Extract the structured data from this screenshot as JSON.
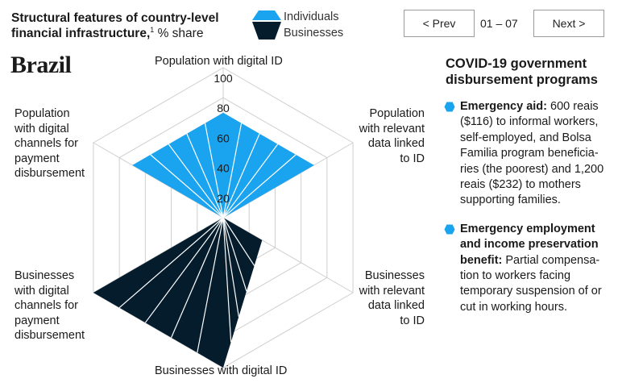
{
  "header": {
    "title_bold": "Structural features of country-level financial infrastructure,",
    "footnote": "1",
    "title_unit": "% share"
  },
  "legend": {
    "items": [
      {
        "label": "Individuals",
        "color": "#1aa3ef"
      },
      {
        "label": "Businesses",
        "color": "#051c2c"
      }
    ]
  },
  "nav": {
    "prev_label": "< Prev",
    "page_indicator": "01 – 07",
    "next_label": "Next >"
  },
  "country": "Brazil",
  "chart_data": {
    "type": "radar",
    "axes": [
      "Population with digital ID",
      "Population with relevant data linked to ID",
      "Businesses with relevant data linked to ID",
      "Businesses with digital ID",
      "Businesses with digital channels for payment disbursement",
      "Population with digital channels for payment disbursement"
    ],
    "tick_labels": [
      "20",
      "40",
      "60",
      "80",
      "100"
    ],
    "range": [
      0,
      100
    ],
    "series": [
      {
        "name": "Individuals",
        "color": "#1aa3ef",
        "values": [
          70,
          70,
          0,
          0,
          0,
          70
        ]
      },
      {
        "name": "Businesses",
        "color": "#051c2c",
        "values": [
          0,
          0,
          30,
          100,
          100,
          0
        ]
      }
    ],
    "axis_labels": {
      "top": "Population with digital ID",
      "top_right": [
        "Population",
        "with relevant",
        "data linked",
        "to ID"
      ],
      "bottom_right": [
        "Businesses",
        "with relevant",
        "data linked",
        "to ID"
      ],
      "bottom": "Businesses with digital ID",
      "bottom_left": [
        "Businesses",
        "with digital",
        "channels for",
        "payment",
        "disbursement"
      ],
      "top_left": [
        "Population",
        "with digital",
        "channels for",
        "payment",
        "disbursement"
      ]
    }
  },
  "sidebar": {
    "title": "COVID-19 government disbursement programs",
    "bullet_color": "#1aa3ef",
    "programs": [
      {
        "name": "Emergency aid:",
        "text": " 600 reais ($116) to informal workers, self-employed, and Bolsa Familia program beneficia-ries (the poorest) and 1,200 reais ($232) to mothers supporting families."
      },
      {
        "name": "Emergency employment and income preservation benefit:",
        "text": " Partial compensa-tion to workers facing temporary suspension of or cut in working hours."
      }
    ]
  }
}
